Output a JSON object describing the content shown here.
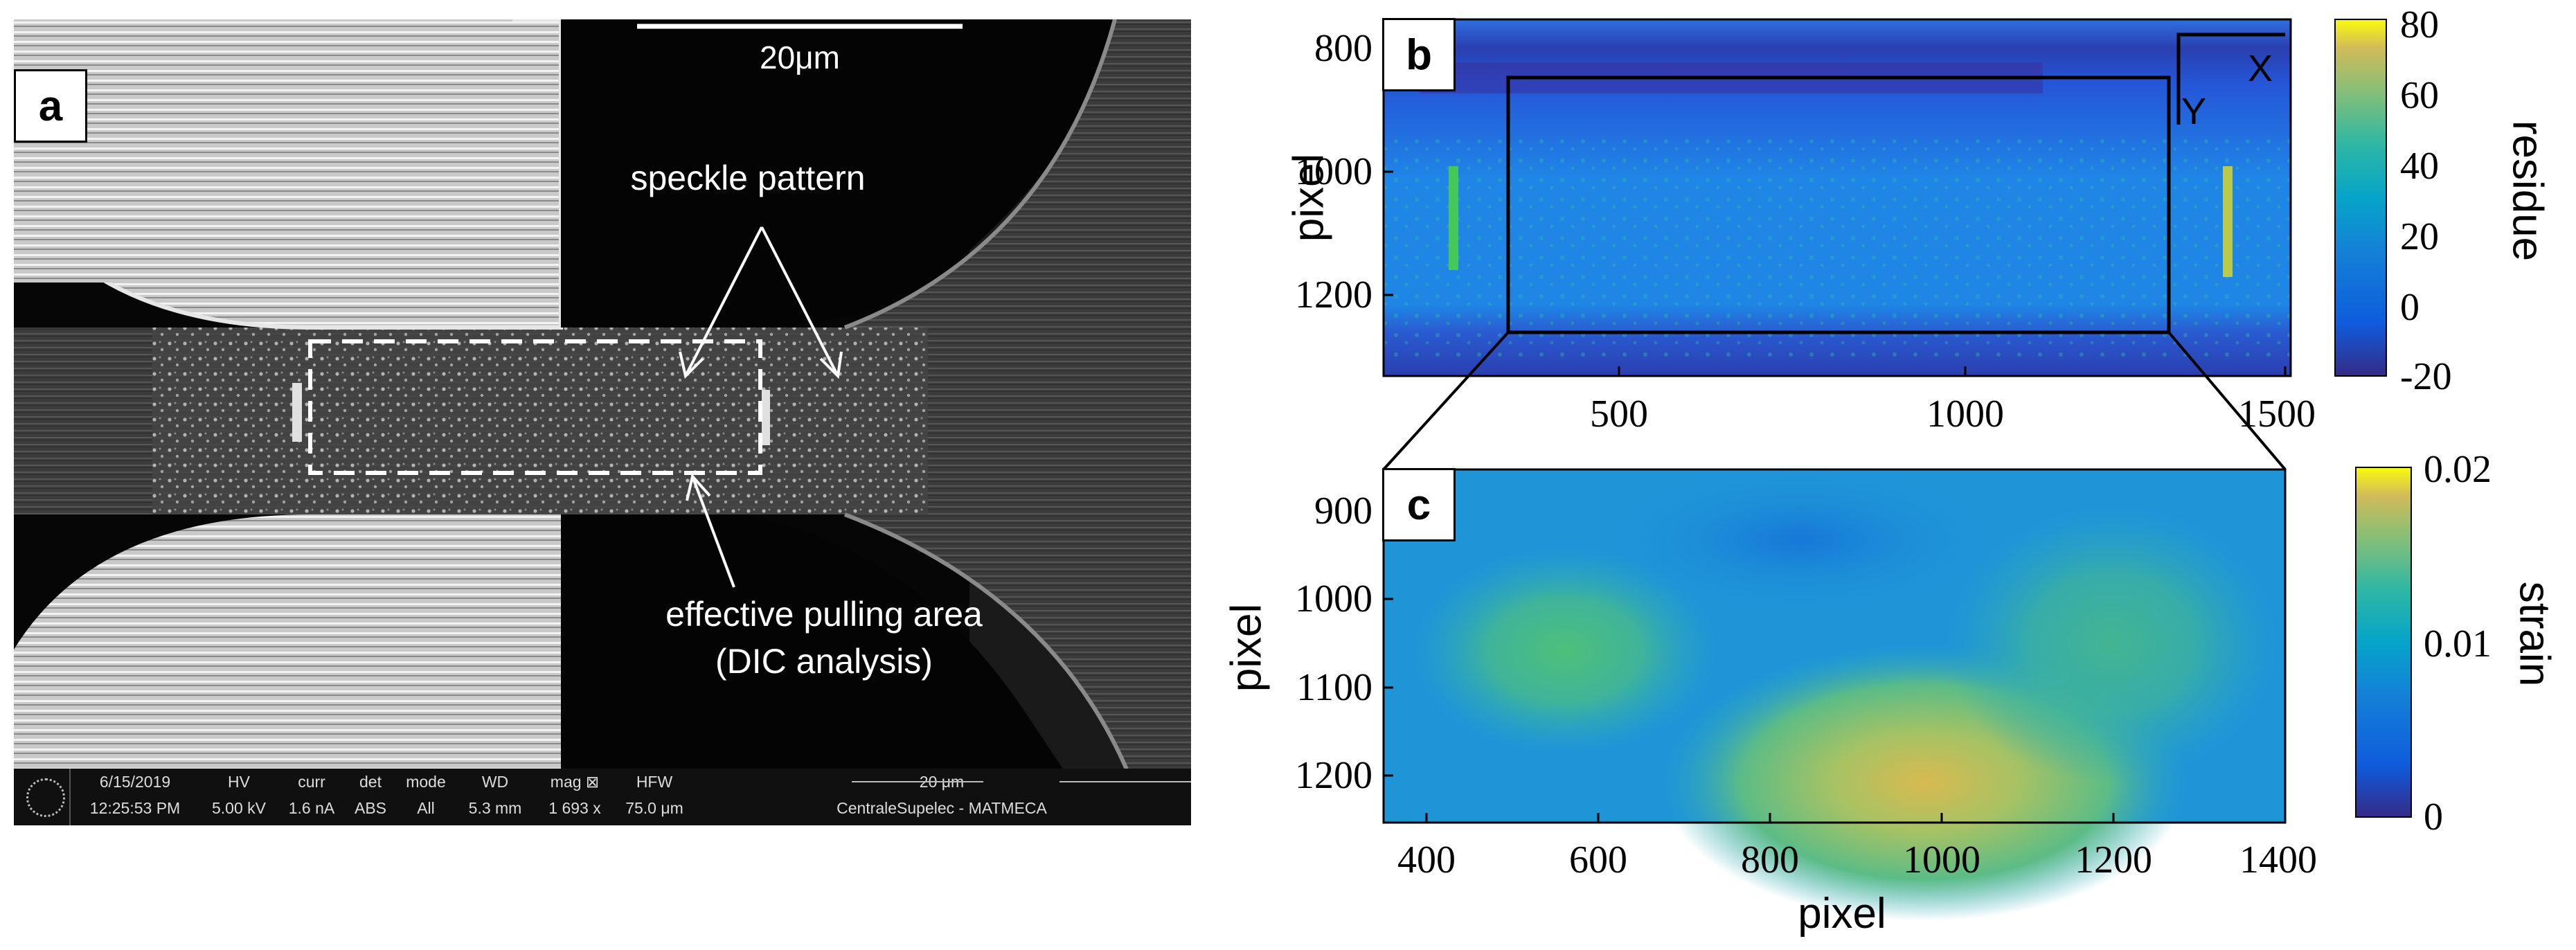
{
  "panel_a": {
    "label": "a",
    "scale_bar": "20μm",
    "annotation_speckle": "speckle pattern",
    "annotation_area_line1": "effective pulling area",
    "annotation_area_line2": "(DIC analysis)",
    "infobar": {
      "date": "6/15/2019",
      "time": "12:25:53 PM",
      "hv_label": "HV",
      "hv_value": "5.00 kV",
      "curr_label": "curr",
      "curr_value": "1.6 nA",
      "det_label": "det",
      "det_value": "ABS",
      "mode_label": "mode",
      "mode_value": "All",
      "wd_label": "WD",
      "wd_value": "5.3 mm",
      "mag_label": "mag ⊠",
      "mag_value": "1 693 x",
      "hfw_label": "HFW",
      "hfw_value": "75.0 μm",
      "scale_label": "20 μm",
      "institution": "CentraleSupelec - MATMECA"
    }
  },
  "panel_b": {
    "label": "b",
    "ylabel": "pixel",
    "yticks": [
      "800",
      "1000",
      "1200"
    ],
    "xticks": [
      "500",
      "1000",
      "1500"
    ],
    "axis_x_label": "X",
    "axis_y_label": "Y",
    "colorbar_label": "residue",
    "colorbar_ticks": [
      "80",
      "60",
      "40",
      "20",
      "0",
      "-20"
    ]
  },
  "panel_c": {
    "label": "c",
    "ylabel": "pixel",
    "xlabel": "pixel",
    "yticks": [
      "900",
      "1000",
      "1100",
      "1200"
    ],
    "xticks": [
      "400",
      "600",
      "800",
      "1000",
      "1200",
      "1400"
    ],
    "colorbar_label": "strain",
    "colorbar_ticks": [
      "0.02",
      "0.01",
      "0"
    ]
  },
  "chart_data": [
    {
      "type": "heatmap",
      "panel": "b",
      "ylabel": "pixel",
      "xlim": [
        0,
        1550
      ],
      "ylim": [
        1330,
        755
      ],
      "x_ticks": [
        500,
        1000,
        1500
      ],
      "y_ticks": [
        800,
        1000,
        1200
      ],
      "colorbar": {
        "label": "residue",
        "range": [
          -20,
          80
        ],
        "ticks": [
          80,
          60,
          40,
          20,
          0,
          -20
        ]
      }
    },
    {
      "type": "heatmap",
      "panel": "c",
      "xlabel": "pixel",
      "ylabel": "pixel",
      "xlim": [
        350,
        1400
      ],
      "ylim": [
        1250,
        845
      ],
      "x_ticks": [
        400,
        600,
        800,
        1000,
        1200,
        1400
      ],
      "y_ticks": [
        900,
        1000,
        1100,
        1200
      ],
      "colorbar": {
        "label": "strain",
        "range": [
          0,
          0.02
        ],
        "ticks": [
          0.02,
          0.01,
          0
        ]
      }
    }
  ]
}
